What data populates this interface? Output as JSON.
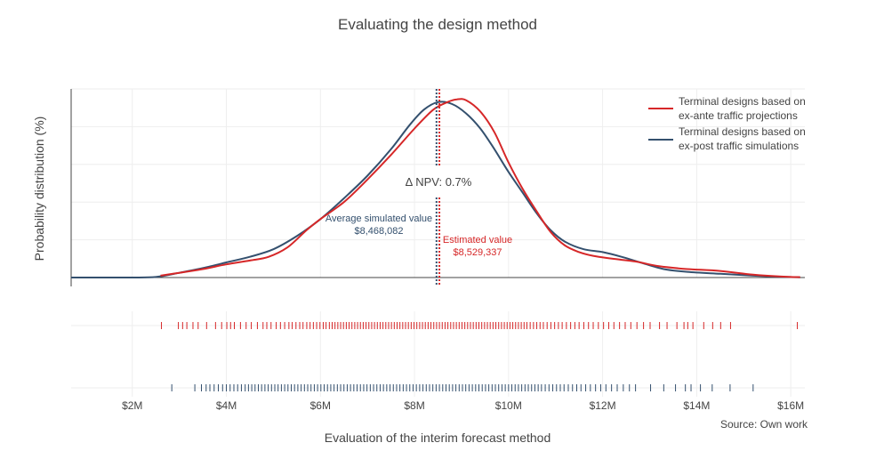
{
  "chart_data": {
    "type": "line",
    "title": "Evaluating the design method",
    "xlabel": "Evaluation of the interim forecast method",
    "ylabel": "Probability distribution (%)",
    "source": "Source: Own work",
    "xlim": [
      700000,
      16300000
    ],
    "x_ticks": [
      {
        "value": 2000000,
        "label": "$2M"
      },
      {
        "value": 4000000,
        "label": "$4M"
      },
      {
        "value": 6000000,
        "label": "$6M"
      },
      {
        "value": 8000000,
        "label": "$8M"
      },
      {
        "value": 10000000,
        "label": "$10M"
      },
      {
        "value": 12000000,
        "label": "$12M"
      },
      {
        "value": 14000000,
        "label": "$14M"
      },
      {
        "value": 16000000,
        "label": "$16M"
      }
    ],
    "ylim": [
      0,
      1.0
    ],
    "grid": true,
    "legend_position": "top-right",
    "colors": {
      "ex_ante": "#d62728",
      "ex_post": "#34506e",
      "text": "#444444"
    },
    "series": [
      {
        "key": "ex_ante",
        "name_lines": [
          "Terminal designs based on",
          "ex-ante traffic projections"
        ],
        "color": "#d62728",
        "x": [
          2600000,
          3000000,
          3500000,
          4000000,
          4500000,
          4900000,
          5300000,
          5700000,
          6000000,
          6500000,
          7000000,
          7500000,
          8000000,
          8400000,
          8700000,
          8900000,
          9100000,
          9400000,
          9700000,
          10000000,
          10300000,
          10600000,
          10900000,
          11200000,
          11500000,
          11800000,
          12200000,
          12700000,
          13200000,
          13800000,
          14500000,
          15200000,
          15800000,
          16200000
        ],
        "y": [
          0.01,
          0.025,
          0.045,
          0.07,
          0.09,
          0.11,
          0.16,
          0.25,
          0.31,
          0.4,
          0.52,
          0.65,
          0.79,
          0.89,
          0.93,
          0.945,
          0.94,
          0.88,
          0.77,
          0.61,
          0.47,
          0.35,
          0.24,
          0.17,
          0.135,
          0.115,
          0.1,
          0.085,
          0.06,
          0.045,
          0.035,
          0.015,
          0.005,
          0.002
        ]
      },
      {
        "key": "ex_post",
        "name_lines": [
          "Terminal designs based on",
          "ex-post traffic simulations"
        ],
        "color": "#34506e",
        "x": [
          700000,
          1500000,
          2000000,
          2500000,
          3000000,
          3500000,
          4000000,
          4500000,
          5000000,
          5500000,
          6000000,
          6500000,
          7000000,
          7500000,
          7900000,
          8200000,
          8500000,
          8800000,
          9100000,
          9400000,
          9700000,
          10000000,
          10300000,
          10600000,
          10900000,
          11200000,
          11600000,
          12000000,
          12400000,
          12800000,
          13300000,
          13800000,
          14500000,
          15200000,
          15800000,
          16200000
        ],
        "y": [
          0.0,
          0.0,
          0.0,
          0.003,
          0.025,
          0.05,
          0.08,
          0.11,
          0.15,
          0.22,
          0.31,
          0.42,
          0.54,
          0.68,
          0.81,
          0.89,
          0.93,
          0.92,
          0.87,
          0.79,
          0.68,
          0.56,
          0.45,
          0.34,
          0.25,
          0.19,
          0.15,
          0.135,
          0.11,
          0.08,
          0.045,
          0.03,
          0.02,
          0.01,
          0.004,
          0.001
        ]
      }
    ],
    "vlines": [
      {
        "key": "avg",
        "x": 8468082,
        "color": "#34506e"
      },
      {
        "key": "est",
        "x": 8529337,
        "color": "#d62728"
      }
    ],
    "annotations": {
      "delta": "Δ NPV: 0.7%",
      "avg_label": "Average simulated value",
      "avg_value": "$8,468,082",
      "est_label": "Estimated value",
      "est_value": "$8,529,337"
    },
    "rug_ex_ante": [
      2620000,
      2980000,
      3070000,
      3160000,
      3290000,
      3400000,
      3580000,
      3770000,
      3900000,
      4010000,
      4090000,
      4170000,
      4300000,
      4420000,
      4530000,
      4660000,
      4780000,
      4860000,
      4950000,
      5060000,
      5150000,
      5240000,
      5330000,
      5400000,
      5480000,
      5560000,
      5630000,
      5710000,
      5780000,
      5850000,
      5920000,
      5990000,
      6060000,
      6120000,
      6190000,
      6250000,
      6310000,
      6370000,
      6430000,
      6490000,
      6550000,
      6610000,
      6670000,
      6730000,
      6790000,
      6850000,
      6910000,
      6970000,
      7030000,
      7090000,
      7150000,
      7210000,
      7270000,
      7330000,
      7390000,
      7450000,
      7510000,
      7570000,
      7630000,
      7690000,
      7750000,
      7810000,
      7870000,
      7930000,
      7990000,
      8050000,
      8110000,
      8170000,
      8230000,
      8290000,
      8350000,
      8410000,
      8470000,
      8530000,
      8590000,
      8650000,
      8710000,
      8770000,
      8830000,
      8890000,
      8950000,
      9010000,
      9070000,
      9130000,
      9190000,
      9250000,
      9310000,
      9370000,
      9430000,
      9490000,
      9550000,
      9610000,
      9670000,
      9730000,
      9790000,
      9850000,
      9910000,
      9970000,
      10030000,
      10090000,
      10150000,
      10210000,
      10270000,
      10330000,
      10390000,
      10460000,
      10530000,
      10600000,
      10670000,
      10740000,
      10820000,
      10900000,
      10980000,
      11060000,
      11140000,
      11230000,
      11320000,
      11410000,
      11500000,
      11600000,
      11700000,
      11800000,
      11910000,
      12020000,
      12130000,
      12240000,
      12360000,
      12480000,
      12600000,
      12730000,
      12870000,
      13010000,
      13210000,
      13370000,
      13580000,
      13730000,
      13810000,
      13920000,
      14150000,
      14340000,
      14510000,
      14720000,
      16140000
    ],
    "rug_ex_post": [
      2840000,
      3330000,
      3470000,
      3570000,
      3650000,
      3740000,
      3830000,
      3920000,
      4000000,
      4080000,
      4160000,
      4240000,
      4320000,
      4400000,
      4470000,
      4540000,
      4610000,
      4680000,
      4750000,
      4820000,
      4890000,
      4960000,
      5030000,
      5100000,
      5170000,
      5240000,
      5310000,
      5380000,
      5450000,
      5520000,
      5590000,
      5660000,
      5730000,
      5800000,
      5870000,
      5940000,
      6010000,
      6080000,
      6150000,
      6220000,
      6290000,
      6360000,
      6430000,
      6500000,
      6570000,
      6640000,
      6710000,
      6780000,
      6850000,
      6920000,
      6990000,
      7060000,
      7130000,
      7200000,
      7270000,
      7340000,
      7410000,
      7480000,
      7550000,
      7620000,
      7690000,
      7760000,
      7830000,
      7900000,
      7970000,
      8040000,
      8110000,
      8180000,
      8250000,
      8320000,
      8390000,
      8460000,
      8530000,
      8600000,
      8670000,
      8740000,
      8810000,
      8880000,
      8950000,
      9020000,
      9090000,
      9160000,
      9230000,
      9300000,
      9370000,
      9440000,
      9510000,
      9580000,
      9650000,
      9720000,
      9790000,
      9860000,
      9930000,
      10000000,
      10070000,
      10140000,
      10210000,
      10280000,
      10350000,
      10420000,
      10490000,
      10560000,
      10630000,
      10700000,
      10780000,
      10860000,
      10940000,
      11020000,
      11100000,
      11180000,
      11270000,
      11360000,
      11450000,
      11540000,
      11640000,
      11740000,
      11850000,
      11960000,
      12070000,
      12190000,
      12310000,
      12440000,
      12570000,
      12700000,
      13020000,
      13300000,
      13550000,
      13760000,
      13880000,
      14080000,
      14330000,
      14710000,
      15200000
    ]
  }
}
